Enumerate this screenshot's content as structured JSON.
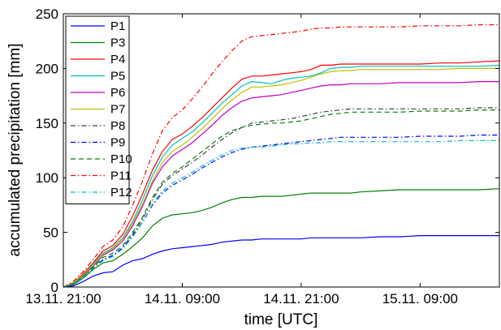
{
  "chart_data": {
    "type": "line",
    "xlabel": "time [UTC]",
    "ylabel": "accumulated precipitation [mm]",
    "x_unit": "hours",
    "xlim": [
      0,
      44
    ],
    "ylim": [
      0,
      250
    ],
    "x_ticks": [
      {
        "value": 0,
        "label": "13.11. 21:00"
      },
      {
        "value": 12,
        "label": "14.11. 09:00"
      },
      {
        "value": 24,
        "label": "14.11. 21:00"
      },
      {
        "value": 36,
        "label": "15.11. 09:00"
      }
    ],
    "y_ticks": [
      0,
      50,
      100,
      150,
      200,
      250
    ],
    "grid": false,
    "legend_position": "top-left",
    "x": [
      0,
      1,
      2,
      3,
      4,
      5,
      6,
      7,
      8,
      9,
      10,
      11,
      12,
      13,
      14,
      15,
      16,
      17,
      18,
      19,
      20,
      21,
      22,
      23,
      24,
      25,
      26,
      27,
      28,
      29,
      30,
      32,
      34,
      36,
      38,
      40,
      42,
      44
    ],
    "series": [
      {
        "name": "P1",
        "color": "#0000ff",
        "dash": "solid",
        "values": [
          0,
          1,
          5,
          10,
          13,
          14,
          20,
          24,
          26,
          30,
          33,
          35,
          36,
          37,
          38,
          39,
          41,
          42,
          43,
          43,
          44,
          44,
          44,
          44,
          44,
          45,
          45,
          45,
          45,
          45,
          45,
          46,
          46,
          47,
          47,
          47,
          47,
          47
        ]
      },
      {
        "name": "P3",
        "color": "#008000",
        "dash": "solid",
        "values": [
          0,
          2,
          8,
          16,
          22,
          24,
          30,
          37,
          45,
          56,
          63,
          66,
          67,
          68,
          70,
          73,
          77,
          80,
          82,
          82,
          83,
          83,
          83,
          84,
          85,
          86,
          86,
          86,
          86,
          86,
          87,
          88,
          89,
          89,
          89,
          89,
          89,
          90
        ]
      },
      {
        "name": "P4",
        "color": "#ff0000",
        "dash": "solid",
        "values": [
          0,
          4,
          12,
          22,
          33,
          38,
          48,
          65,
          85,
          107,
          124,
          135,
          140,
          147,
          155,
          164,
          173,
          182,
          190,
          193,
          193,
          194,
          195,
          196,
          197,
          199,
          203,
          203,
          204,
          204,
          204,
          204,
          204,
          204,
          205,
          205,
          206,
          207
        ]
      },
      {
        "name": "P5",
        "color": "#00bfbf",
        "dash": "solid",
        "values": [
          0,
          4,
          11,
          21,
          31,
          36,
          45,
          60,
          80,
          102,
          119,
          130,
          136,
          142,
          150,
          159,
          168,
          176,
          184,
          188,
          187,
          186,
          189,
          191,
          192,
          193,
          196,
          200,
          201,
          201,
          202,
          202,
          202,
          202,
          202,
          202,
          202,
          203
        ]
      },
      {
        "name": "P6",
        "color": "#bf00bf",
        "dash": "solid",
        "values": [
          0,
          3,
          10,
          19,
          29,
          34,
          42,
          56,
          74,
          95,
          110,
          120,
          126,
          132,
          140,
          148,
          157,
          164,
          170,
          173,
          174,
          175,
          176,
          178,
          180,
          182,
          184,
          185,
          185,
          186,
          186,
          186,
          187,
          187,
          187,
          187,
          188,
          188
        ]
      },
      {
        "name": "P7",
        "color": "#bfbf00",
        "dash": "solid",
        "values": [
          0,
          4,
          11,
          20,
          30,
          35,
          44,
          58,
          76,
          97,
          114,
          124,
          130,
          137,
          145,
          154,
          163,
          171,
          178,
          183,
          183,
          184,
          185,
          187,
          189,
          192,
          195,
          197,
          198,
          198,
          199,
          199,
          199,
          199,
          199,
          200,
          200,
          200
        ]
      },
      {
        "name": "P8",
        "color": "#404040",
        "dash": "dashdot",
        "values": [
          0,
          3,
          9,
          17,
          25,
          29,
          36,
          48,
          62,
          80,
          94,
          102,
          108,
          114,
          121,
          128,
          135,
          141,
          146,
          150,
          151,
          152,
          153,
          154,
          156,
          158,
          160,
          161,
          162,
          163,
          163,
          163,
          163,
          163,
          163,
          163,
          164,
          164
        ]
      },
      {
        "name": "P9",
        "color": "#0000ff",
        "dash": "dashdot",
        "values": [
          0,
          3,
          9,
          17,
          25,
          29,
          36,
          47,
          59,
          75,
          86,
          93,
          98,
          103,
          109,
          114,
          119,
          123,
          126,
          128,
          129,
          130,
          131,
          132,
          133,
          134,
          135,
          136,
          137,
          137,
          137,
          137,
          137,
          138,
          138,
          138,
          139,
          139
        ]
      },
      {
        "name": "P10",
        "color": "#008000",
        "dash": "dashed",
        "values": [
          0,
          3,
          10,
          18,
          27,
          31,
          38,
          50,
          64,
          82,
          96,
          104,
          110,
          117,
          124,
          131,
          138,
          143,
          146,
          148,
          149,
          150,
          150,
          151,
          152,
          154,
          156,
          158,
          159,
          160,
          160,
          160,
          160,
          161,
          161,
          161,
          162,
          162
        ]
      },
      {
        "name": "P11",
        "color": "#ff0000",
        "dash": "dashdot",
        "values": [
          0,
          5,
          14,
          25,
          37,
          43,
          55,
          75,
          97,
          122,
          143,
          155,
          162,
          172,
          183,
          195,
          206,
          216,
          225,
          229,
          230,
          231,
          232,
          233,
          234,
          236,
          237,
          237,
          238,
          238,
          238,
          238,
          238,
          239,
          239,
          239,
          240,
          240
        ]
      },
      {
        "name": "P12",
        "color": "#00bfbf",
        "dash": "dashdot",
        "values": [
          0,
          3,
          9,
          17,
          24,
          28,
          35,
          46,
          59,
          76,
          88,
          95,
          100,
          105,
          111,
          116,
          121,
          125,
          127,
          128,
          128,
          129,
          130,
          131,
          131,
          132,
          132,
          133,
          133,
          133,
          133,
          133,
          133,
          133,
          133,
          134,
          134,
          134
        ]
      }
    ]
  }
}
